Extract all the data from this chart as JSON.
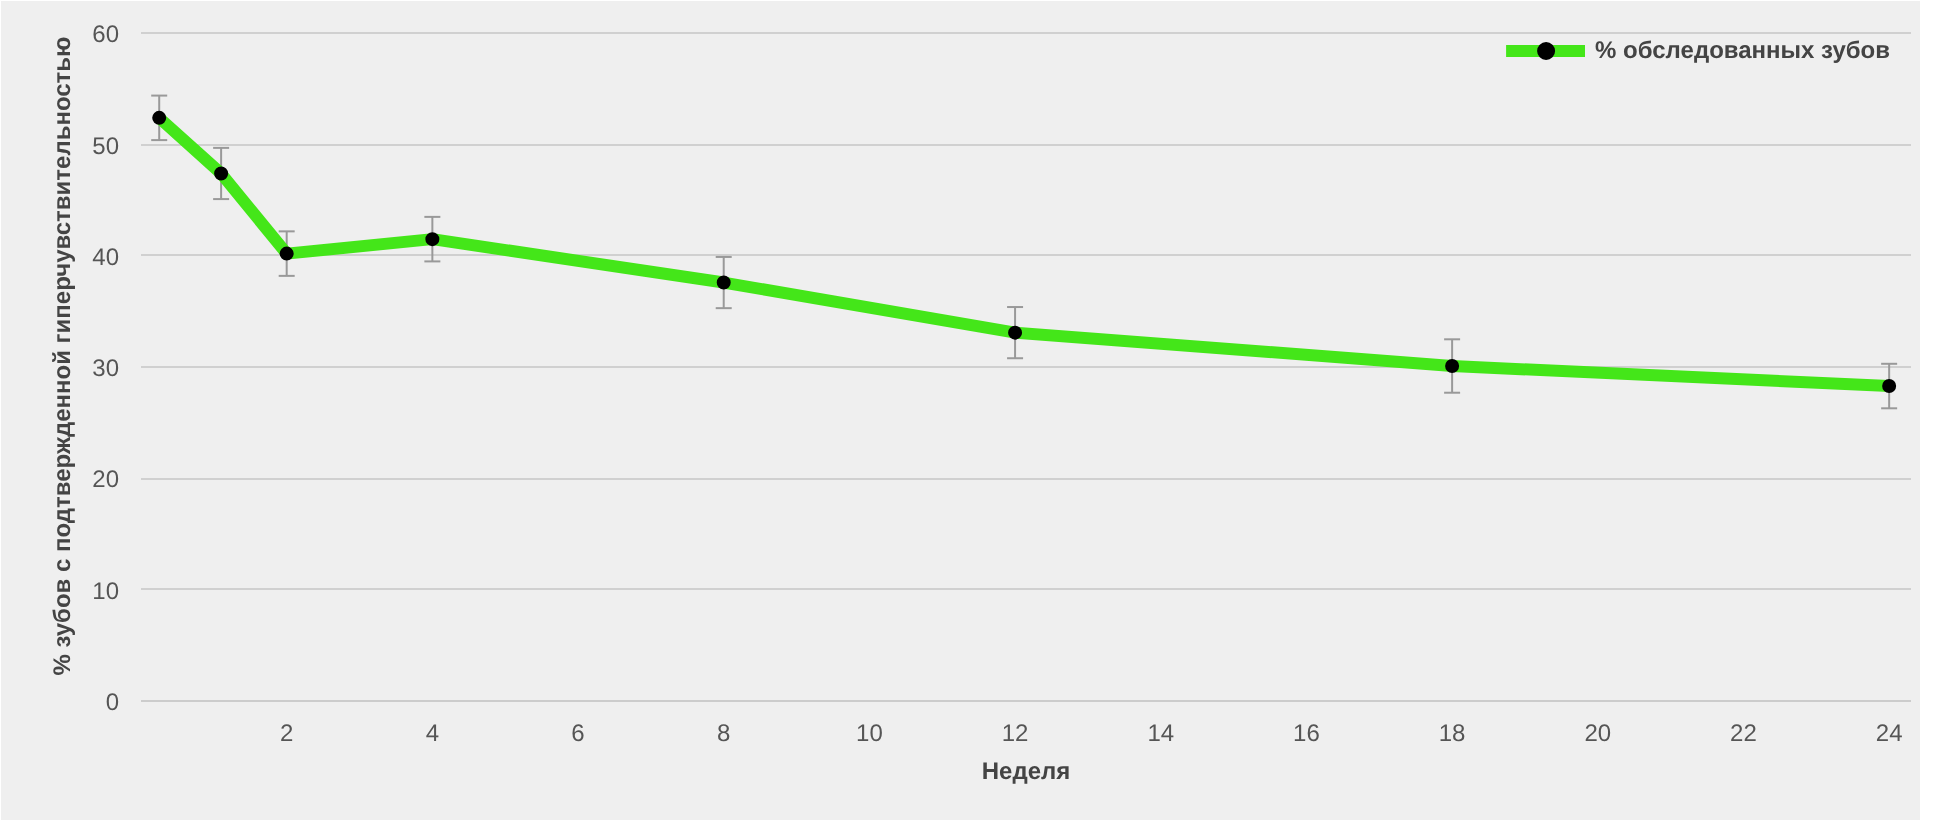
{
  "chart_data": {
    "type": "line",
    "xlabel": "Неделя",
    "ylabel": "% зубов с подтвержденной гиперчувствительностью",
    "x": [
      0.25,
      1.1,
      2,
      4,
      8,
      12,
      18,
      24
    ],
    "series": [
      {
        "name": "% обследованных зубов",
        "color": "#44e619",
        "values": [
          52.4,
          47.4,
          40.2,
          41.5,
          37.6,
          33.1,
          30.1,
          28.3
        ],
        "errors": [
          2,
          2.3,
          2,
          2,
          2.3,
          2.3,
          2.4,
          2
        ]
      }
    ],
    "xlim": [
      0,
      24.3
    ],
    "xticks": [
      2,
      4,
      6,
      8,
      10,
      12,
      14,
      16,
      18,
      20,
      22,
      24
    ],
    "ylim": [
      0,
      62
    ],
    "yticks": [
      0,
      10,
      20,
      30,
      40,
      50,
      60
    ],
    "grid": "y",
    "legend": "top right",
    "marker": "circle",
    "line_style": "solid"
  }
}
